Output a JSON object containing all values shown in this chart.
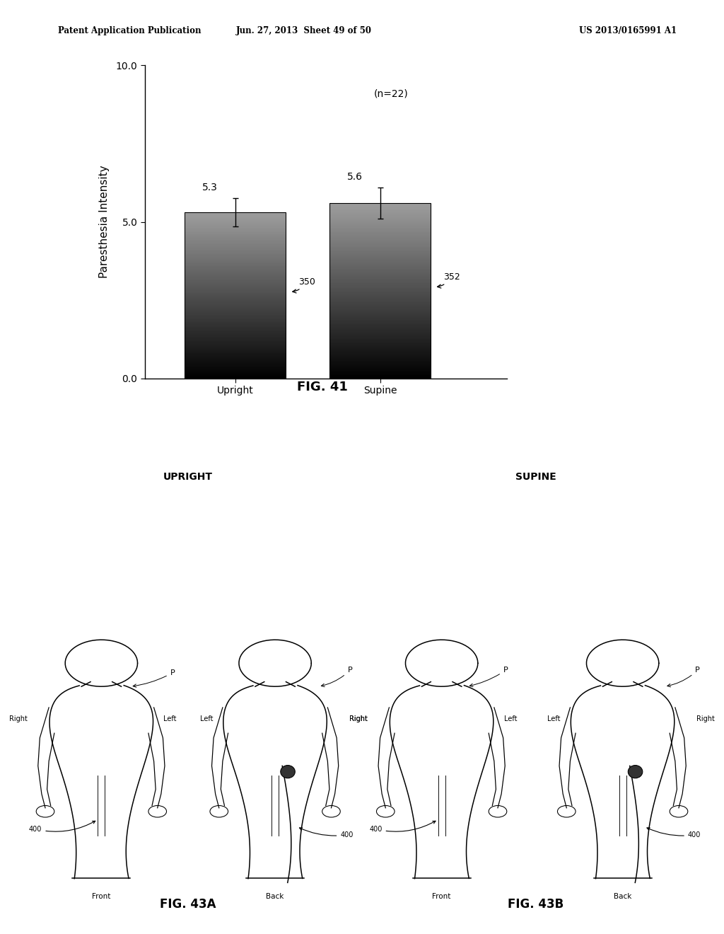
{
  "header_left": "Patent Application Publication",
  "header_mid": "Jun. 27, 2013  Sheet 49 of 50",
  "header_right": "US 2013/0165991 A1",
  "fig41_title": "FIG. 41",
  "fig41_categories": [
    "Upright",
    "Supine"
  ],
  "fig41_values": [
    5.3,
    5.6
  ],
  "fig41_errors": [
    0.45,
    0.5
  ],
  "fig41_labels": [
    "5.3",
    "5.6"
  ],
  "fig41_bar_labels": [
    "350",
    "352"
  ],
  "fig41_ylabel": "Paresthesia Intensity",
  "fig41_annotation": "(n=22)",
  "fig41_ylim": [
    0.0,
    10.0
  ],
  "fig41_yticks": [
    0.0,
    5.0,
    10.0
  ],
  "fig43a_title": "FIG. 43A",
  "fig43b_title": "FIG. 43B",
  "upright_title": "UPRIGHT",
  "supine_title": "SUPINE",
  "background_color": "#ffffff",
  "text_color": "#000000"
}
